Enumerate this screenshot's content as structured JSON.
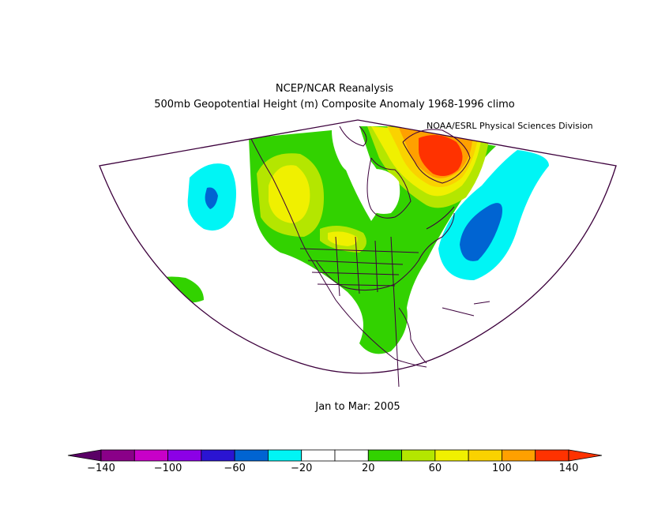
{
  "header": {
    "title_line1": "NCEP/NCAR Reanalysis",
    "title_line2": "500mb Geopotential Height (m) Composite Anomaly 1968-1996 climo",
    "credit": "NOAA/ESRL Physical Sciences Division"
  },
  "period_label": "Jan to Mar: 2005",
  "colorbar": {
    "colors": [
      "#5a0066",
      "#8a0088",
      "#c800c8",
      "#8c00e6",
      "#2a14d2",
      "#0064d2",
      "#00f5f5",
      "#ffffff",
      "#ffffff",
      "#32d200",
      "#b4e600",
      "#f0f000",
      "#fad200",
      "#ffa000",
      "#ff3200",
      "#ff3200"
    ],
    "tick_labels": [
      "-140",
      "-100",
      "-60",
      "-20",
      "20",
      "60",
      "100",
      "140"
    ]
  },
  "map_colors": {
    "green": "#32d200",
    "yellow_green": "#b4e600",
    "yellow": "#f0f000",
    "gold": "#fad200",
    "orange": "#ffa000",
    "red": "#ff3200",
    "cyan": "#00f5f5",
    "blue": "#0064d2",
    "outline": "#3c003c"
  }
}
